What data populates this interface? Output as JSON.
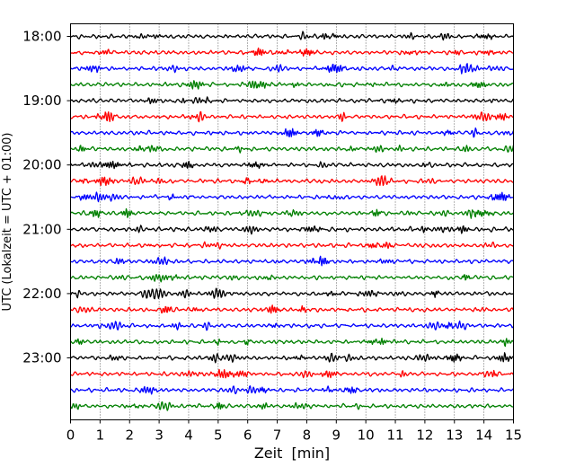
{
  "chart_data": {
    "type": "line",
    "title": "",
    "xlabel": "Zeit  [min]",
    "ylabel": "UTC (Lokalzeit = UTC + 01:00)",
    "xlim": [
      0,
      15
    ],
    "x_ticks": [
      "0",
      "1",
      "2",
      "3",
      "4",
      "5",
      "6",
      "7",
      "8",
      "9",
      "10",
      "11",
      "12",
      "13",
      "14",
      "15"
    ],
    "y_tick_labels": [
      "18:00",
      "19:00",
      "20:00",
      "21:00",
      "22:00",
      "23:00"
    ],
    "grid": "vertical dotted",
    "trace_colors": [
      "#000000",
      "#ff0000",
      "#0000ff",
      "#008000"
    ],
    "traces": [
      {
        "start": "18:00",
        "color": "#000000"
      },
      {
        "start": "18:15",
        "color": "#ff0000"
      },
      {
        "start": "18:30",
        "color": "#0000ff"
      },
      {
        "start": "18:45",
        "color": "#008000"
      },
      {
        "start": "19:00",
        "color": "#000000"
      },
      {
        "start": "19:15",
        "color": "#ff0000"
      },
      {
        "start": "19:30",
        "color": "#0000ff"
      },
      {
        "start": "19:45",
        "color": "#008000"
      },
      {
        "start": "20:00",
        "color": "#000000"
      },
      {
        "start": "20:15",
        "color": "#ff0000"
      },
      {
        "start": "20:30",
        "color": "#0000ff"
      },
      {
        "start": "20:45",
        "color": "#008000"
      },
      {
        "start": "21:00",
        "color": "#000000"
      },
      {
        "start": "21:15",
        "color": "#ff0000"
      },
      {
        "start": "21:30",
        "color": "#0000ff"
      },
      {
        "start": "21:45",
        "color": "#008000"
      },
      {
        "start": "22:00",
        "color": "#000000"
      },
      {
        "start": "22:15",
        "color": "#ff0000"
      },
      {
        "start": "22:30",
        "color": "#0000ff"
      },
      {
        "start": "22:45",
        "color": "#008000"
      },
      {
        "start": "23:00",
        "color": "#000000"
      },
      {
        "start": "23:15",
        "color": "#ff0000"
      },
      {
        "start": "23:30",
        "color": "#0000ff"
      },
      {
        "start": "23:45",
        "color": "#008000"
      }
    ]
  }
}
